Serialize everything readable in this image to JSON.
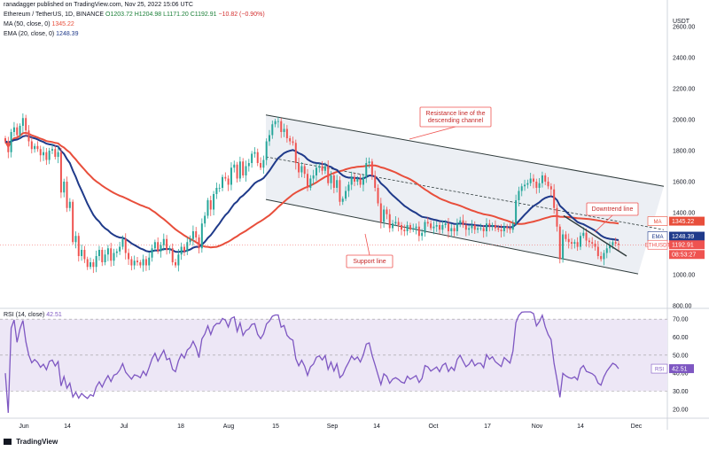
{
  "header": {
    "published": "ranadagger published on TradingView.com, Nov 25, 2022 15:06 UTC",
    "symbol_line": "Ethereum / TetherUS, 1D, BINANCE",
    "open": "O1203.72",
    "high": "H1204.98",
    "low": "L1171.20",
    "close": "C1192.91",
    "change": "−10.82 (−0.90%)",
    "ma_label": "MA (50, close, 0)",
    "ma_value": "1345.22",
    "ema_label": "EMA (20, close, 0)",
    "ema_value": "1248.39",
    "rsi_label": "RSI (14, close)",
    "rsi_value": "42.51",
    "logo_text": "TradingView"
  },
  "colors": {
    "up": "#26a69a",
    "down": "#ef5350",
    "ma": "#e84e3b",
    "ema": "#1f3a8a",
    "rsi": "#7e57c2",
    "channel_fill": "#eceff4",
    "channel_line": "#2f3b3b"
  },
  "chart_data": [
    {
      "type": "candlestick",
      "title": "Ethereum / TetherUS, 1D, BINANCE",
      "currency": "USDT",
      "ylim": [
        800,
        2600
      ],
      "y_ticks": [
        800,
        1000,
        1200,
        1400,
        1600,
        1800,
        2000,
        2200,
        2400,
        2600
      ],
      "x_ticks": [
        "Jun",
        "14",
        "Jul",
        "18",
        "Aug",
        "15",
        "Sep",
        "14",
        "Oct",
        "17",
        "Nov",
        "14",
        "Dec"
      ],
      "close_series": [
        1860,
        1790,
        1920,
        1950,
        1900,
        1960,
        2010,
        1930,
        1860,
        1810,
        1830,
        1810,
        1770,
        1790,
        1740,
        1800,
        1810,
        1760,
        1790,
        1530,
        1600,
        1430,
        1470,
        1210,
        1250,
        1120,
        1160,
        1100,
        1050,
        1080,
        1050,
        1120,
        1160,
        1080,
        1130,
        1170,
        1090,
        1140,
        1150,
        1180,
        1230,
        1140,
        1100,
        1060,
        1090,
        1080,
        1060,
        1100,
        1060,
        1110,
        1170,
        1210,
        1150,
        1190,
        1230,
        1160,
        1170,
        1080,
        1060,
        1130,
        1180,
        1150,
        1210,
        1230,
        1280,
        1240,
        1170,
        1330,
        1380,
        1480,
        1420,
        1520,
        1560,
        1560,
        1630,
        1620,
        1580,
        1690,
        1710,
        1620,
        1730,
        1640,
        1700,
        1720,
        1780,
        1790,
        1720,
        1690,
        1740,
        1860,
        1900,
        1970,
        1990,
        1990,
        1920,
        1940,
        1880,
        1860,
        1850,
        1720,
        1660,
        1700,
        1650,
        1560,
        1620,
        1640,
        1690,
        1700,
        1670,
        1700,
        1590,
        1640,
        1560,
        1610,
        1470,
        1490,
        1540,
        1580,
        1630,
        1600,
        1620,
        1580,
        1630,
        1720,
        1730,
        1640,
        1560,
        1460,
        1340,
        1420,
        1390,
        1300,
        1330,
        1340,
        1320,
        1290,
        1280,
        1320,
        1290,
        1300,
        1310,
        1250,
        1270,
        1340,
        1330,
        1300,
        1310,
        1320,
        1290,
        1320,
        1330,
        1280,
        1300,
        1280,
        1330,
        1350,
        1320,
        1290,
        1300,
        1320,
        1290,
        1300,
        1300,
        1280,
        1330,
        1310,
        1320,
        1300,
        1290,
        1280,
        1310,
        1300,
        1290,
        1330,
        1480,
        1540,
        1570,
        1580,
        1590,
        1620,
        1600,
        1560,
        1590,
        1640,
        1600,
        1570,
        1550,
        1430,
        1310,
        1100,
        1260,
        1230,
        1210,
        1200,
        1210,
        1180,
        1250,
        1270,
        1220,
        1210,
        1200,
        1180,
        1120,
        1100,
        1140,
        1170,
        1190,
        1210,
        1200,
        1193
      ],
      "ma50": {
        "name": "MA (50, close, 0)",
        "last": 1345.22
      },
      "ema20": {
        "name": "EMA (20, close, 0)",
        "last": 1248.39
      },
      "last_price": 1192.91,
      "countdown": "08:53:27",
      "price_tags": [
        {
          "label": "MA",
          "value": "1345.22"
        },
        {
          "label": "EMA",
          "value": "1248.39"
        },
        {
          "label": "ETHUSDT",
          "value": "1192.91"
        },
        {
          "label": "",
          "value": "08:53:27"
        }
      ],
      "annotations": [
        {
          "text": [
            "Resistance line of the",
            "descending channel"
          ]
        },
        {
          "text": [
            "Support line"
          ]
        },
        {
          "text": [
            "Downtrend line"
          ]
        }
      ]
    },
    {
      "type": "line",
      "title": "RSI (14, close)",
      "ylim": [
        15,
        75
      ],
      "y_ticks": [
        20,
        30,
        40,
        50,
        60,
        70
      ],
      "band": [
        30,
        70
      ],
      "last": 42.51
    }
  ]
}
